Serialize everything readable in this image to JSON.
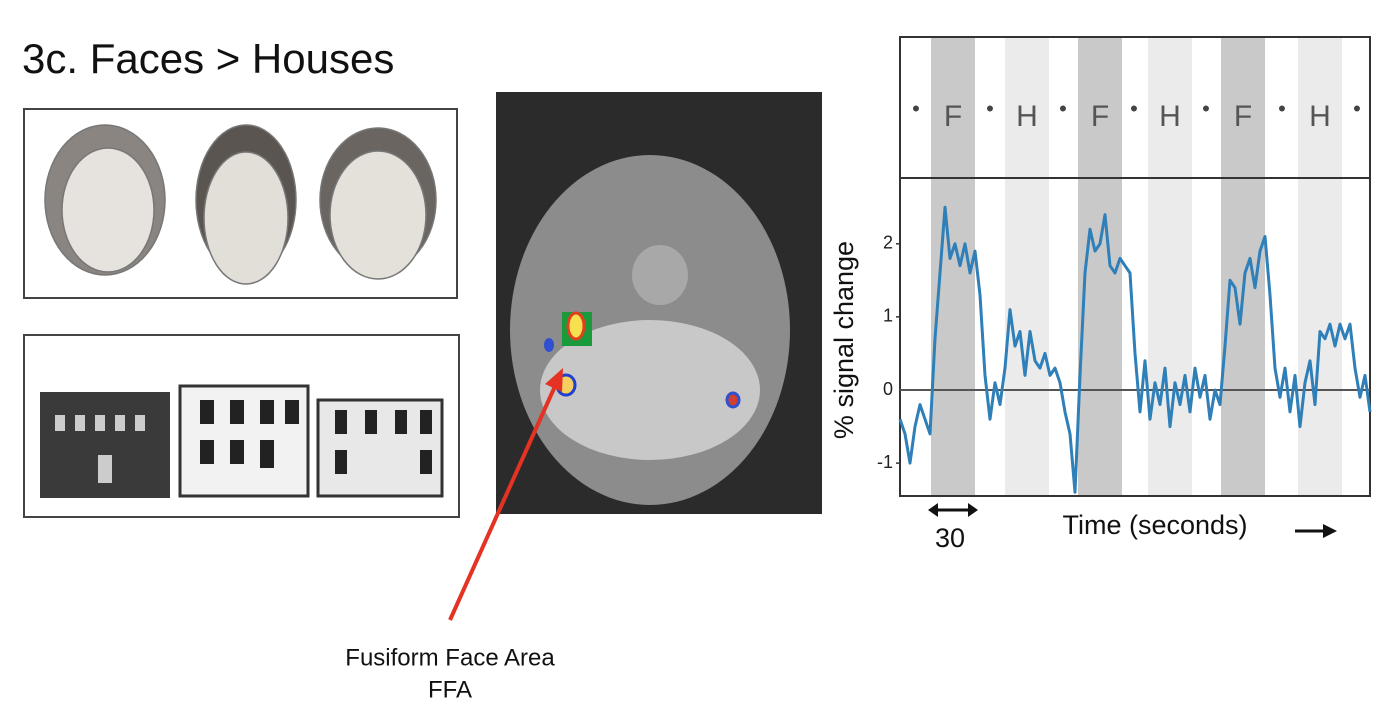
{
  "title": "3c. Faces > Houses",
  "annotation": {
    "line1": "Fusiform Face Area",
    "line2": "FFA"
  },
  "chart_data": {
    "type": "line",
    "block_labels": [
      "F",
      "H",
      "F",
      "H",
      "F",
      "H"
    ],
    "block_separator": "•",
    "ylabel": "% signal change",
    "xlabel": "Time (seconds)",
    "scale_bar_seconds": 30,
    "color": "#2f7fb8",
    "ylim": [
      -1.45,
      2.9
    ],
    "yticks": [
      -1,
      0,
      1,
      2
    ],
    "values": [
      -0.4,
      -0.6,
      -1.0,
      -0.5,
      -0.2,
      -0.4,
      -0.6,
      0.7,
      1.6,
      2.5,
      1.8,
      2.0,
      1.7,
      2.0,
      1.6,
      1.9,
      1.3,
      0.2,
      -0.4,
      0.1,
      -0.2,
      0.3,
      1.1,
      0.6,
      0.8,
      0.2,
      0.8,
      0.4,
      0.3,
      0.5,
      0.2,
      0.3,
      0.1,
      -0.3,
      -0.6,
      -1.4,
      0.2,
      1.6,
      2.2,
      1.9,
      2.0,
      2.4,
      1.7,
      1.6,
      1.8,
      1.7,
      1.6,
      0.5,
      -0.3,
      0.4,
      -0.4,
      0.1,
      -0.2,
      0.3,
      -0.5,
      0.1,
      -0.2,
      0.2,
      -0.3,
      0.3,
      -0.1,
      0.2,
      -0.4,
      0.0,
      -0.2,
      0.6,
      1.5,
      1.4,
      0.9,
      1.6,
      1.8,
      1.4,
      1.9,
      2.1,
      1.3,
      0.3,
      -0.1,
      0.3,
      -0.3,
      0.2,
      -0.5,
      0.1,
      0.4,
      -0.2,
      0.8,
      0.7,
      0.9,
      0.6,
      0.9,
      0.7,
      0.9,
      0.3,
      -0.1,
      0.2,
      -0.3
    ]
  }
}
